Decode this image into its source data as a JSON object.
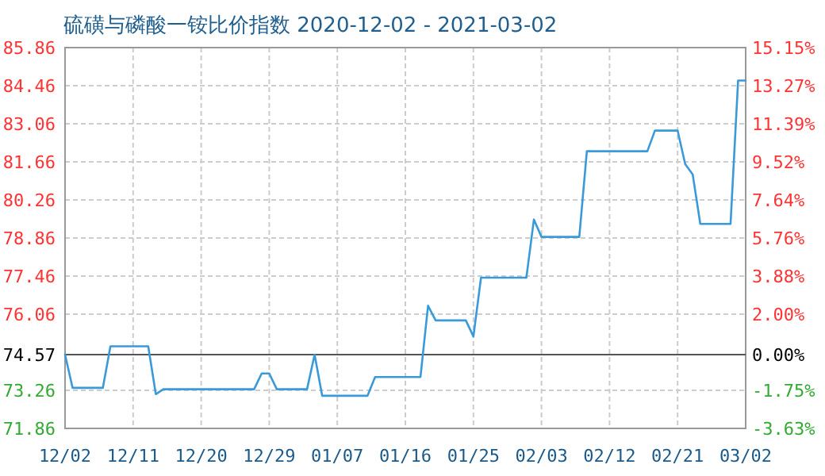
{
  "chart_data": {
    "type": "line",
    "title": "硫磺与磷酸一铵比价指数 2020-12-02 - 2021-03-02",
    "x": [
      "2020-12-02",
      "2020-12-03",
      "2020-12-07",
      "2020-12-08",
      "2020-12-13",
      "2020-12-14",
      "2020-12-15",
      "2020-12-27",
      "2020-12-28",
      "2020-12-29",
      "2020-12-30",
      "2021-01-03",
      "2021-01-04",
      "2021-01-05",
      "2021-01-11",
      "2021-01-12",
      "2021-01-18",
      "2021-01-19",
      "2021-01-20",
      "2021-01-24",
      "2021-01-25",
      "2021-01-26",
      "2021-02-01",
      "2021-02-02",
      "2021-02-03",
      "2021-02-08",
      "2021-02-09",
      "2021-02-17",
      "2021-02-18",
      "2021-02-21",
      "2021-02-22",
      "2021-02-23",
      "2021-02-24",
      "2021-02-28",
      "2021-03-01",
      "2021-03-02"
    ],
    "series": [
      {
        "color": "#3a9ad9",
        "values": [
          74.57,
          73.35,
          73.35,
          74.88,
          74.88,
          73.12,
          73.3,
          73.3,
          73.88,
          73.88,
          73.3,
          73.3,
          74.57,
          73.06,
          73.06,
          73.75,
          73.75,
          76.37,
          75.83,
          75.83,
          75.24,
          77.4,
          77.4,
          79.54,
          78.9,
          78.9,
          82.05,
          82.05,
          82.81,
          82.81,
          81.58,
          81.19,
          79.38,
          79.38,
          84.65,
          84.65
        ]
      }
    ],
    "xlim": [
      "2020-12-02",
      "2021-03-02"
    ],
    "xticks": [
      {
        "value": "2020-12-02",
        "label": "12/02"
      },
      {
        "value": "2020-12-11",
        "label": "12/11"
      },
      {
        "value": "2020-12-20",
        "label": "12/20"
      },
      {
        "value": "2020-12-29",
        "label": "12/29"
      },
      {
        "value": "2021-01-07",
        "label": "01/07"
      },
      {
        "value": "2021-01-16",
        "label": "01/16"
      },
      {
        "value": "2021-01-25",
        "label": "01/25"
      },
      {
        "value": "2021-02-03",
        "label": "02/03"
      },
      {
        "value": "2021-02-12",
        "label": "02/12"
      },
      {
        "value": "2021-02-21",
        "label": "02/21"
      },
      {
        "value": "2021-03-02",
        "label": "03/02"
      }
    ],
    "ylim": [
      71.86,
      85.86
    ],
    "yticks": [
      71.86,
      73.26,
      74.57,
      76.06,
      77.46,
      78.86,
      80.26,
      81.66,
      83.06,
      84.46,
      85.86
    ],
    "y2lim": [
      -3.63,
      15.15
    ],
    "y2ticks": [
      {
        "value": -3.63,
        "label": "-3.63%"
      },
      {
        "value": -1.75,
        "label": "-1.75%"
      },
      {
        "value": 0,
        "label": "0.00%"
      },
      {
        "value": 2,
        "label": "2.00%"
      },
      {
        "value": 3.88,
        "label": "3.88%"
      },
      {
        "value": 5.76,
        "label": "5.76%"
      },
      {
        "value": 7.64,
        "label": "7.64%"
      },
      {
        "value": 9.52,
        "label": "9.52%"
      },
      {
        "value": 11.39,
        "label": "11.39%"
      },
      {
        "value": 13.27,
        "label": "13.27%"
      },
      {
        "value": 15.15,
        "label": "15.15%"
      }
    ],
    "grid": true,
    "ref_lines": [
      {
        "axis": "y",
        "value": 74.57,
        "color": "#555555"
      }
    ]
  }
}
